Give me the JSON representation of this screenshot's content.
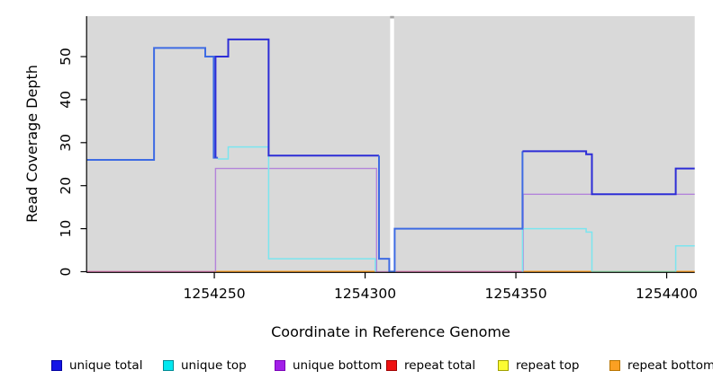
{
  "chart_data": {
    "type": "line",
    "title": "",
    "xlabel": "Coordinate in Reference Genome",
    "ylabel": "Read Coverage Depth",
    "xlim": [
      1254207.8,
      1254409.3
    ],
    "ylim": [
      0,
      59.4
    ],
    "x_ticks": [
      1254250,
      1254300,
      1254350,
      1254400
    ],
    "y_ticks": [
      0,
      10,
      20,
      30,
      40,
      50
    ],
    "grid": false,
    "plot_background": "#D9D9D9",
    "axis_color": "#000000",
    "gap_band": {
      "x0": 1254308.3,
      "x1": 1254309.6,
      "fill": "#FFFFFF",
      "cap_fill": "#A3A3A3"
    },
    "series": [
      {
        "name": "baseline-left-pink",
        "color": "#D878AE",
        "width": 1.8,
        "segments": [
          [
            [
              1254207.8,
              0
            ],
            [
              1254250,
              0
            ]
          ]
        ]
      },
      {
        "name": "baseline-left-orange",
        "color": "#FF9E20",
        "width": 2,
        "segments": [
          [
            [
              1254250,
              0
            ],
            [
              1254303.4,
              0
            ]
          ]
        ]
      },
      {
        "name": "baseline-gapside-violet",
        "color": "#CF8CC5",
        "width": 1.6,
        "segments": [
          [
            [
              1254303.4,
              0
            ],
            [
              1254308.3,
              0
            ]
          ]
        ]
      },
      {
        "name": "baseline-mid-pink",
        "color": "#D878AE",
        "width": 1.8,
        "segments": [
          [
            [
              1254310.2,
              0
            ],
            [
              1254352.2,
              0
            ]
          ]
        ]
      },
      {
        "name": "baseline-right-orange-1",
        "color": "#FF9E20",
        "width": 2,
        "segments": [
          [
            [
              1254352.2,
              0
            ],
            [
              1254375.2,
              0
            ]
          ]
        ]
      },
      {
        "name": "baseline-right-green",
        "color": "#8FD7A3",
        "width": 1.8,
        "segments": [
          [
            [
              1254375.2,
              0
            ],
            [
              1254403,
              0
            ]
          ]
        ]
      },
      {
        "name": "baseline-right-orange-2",
        "color": "#FF9E20",
        "width": 2,
        "segments": [
          [
            [
              1254403,
              0
            ],
            [
              1254409.3,
              0
            ]
          ]
        ]
      },
      {
        "name": "unique-bottom",
        "color": "#B384DA",
        "width": 1.4,
        "segments": [
          [
            [
              1254250.4,
              0
            ],
            [
              1254250.4,
              24
            ],
            [
              1254303.8,
              24
            ],
            [
              1254303.8,
              0
            ]
          ],
          [
            [
              1254352.4,
              0
            ],
            [
              1254352.4,
              18
            ],
            [
              1254409.3,
              18
            ]
          ]
        ]
      },
      {
        "name": "unique-top",
        "color": "#7BE5EF",
        "width": 1.5,
        "segments": [
          [
            [
              1254251.2,
              26.2
            ],
            [
              1254254.6,
              26.2
            ],
            [
              1254254.6,
              29
            ],
            [
              1254268,
              29
            ],
            [
              1254268,
              3
            ],
            [
              1254303.4,
              3
            ],
            [
              1254303.4,
              0
            ]
          ],
          [
            [
              1254352.2,
              0
            ],
            [
              1254352.2,
              10
            ],
            [
              1254373.3,
              10
            ],
            [
              1254373.3,
              9.2
            ],
            [
              1254375.2,
              9.2
            ],
            [
              1254375.2,
              0
            ]
          ],
          [
            [
              1254403,
              0
            ],
            [
              1254403,
              6
            ],
            [
              1254409.3,
              6
            ]
          ]
        ]
      },
      {
        "name": "unique-total-left",
        "color": "#3E6BE3",
        "width": 2,
        "segments": [
          [
            [
              1254207.8,
              26
            ],
            [
              1254230,
              26
            ],
            [
              1254230,
              52
            ],
            [
              1254247,
              52
            ],
            [
              1254247,
              50
            ],
            [
              1254249.8,
              50
            ],
            [
              1254249.8,
              26.5
            ],
            [
              1254251.2,
              26.5
            ]
          ]
        ]
      },
      {
        "name": "unique-total-left-dark",
        "color": "#2D2DD6",
        "width": 2,
        "segments": [
          [
            [
              1254250.4,
              26.5
            ],
            [
              1254250.4,
              50
            ],
            [
              1254254.6,
              50
            ],
            [
              1254254.6,
              54
            ],
            [
              1254268,
              54
            ],
            [
              1254268,
              27
            ],
            [
              1254304.6,
              27
            ]
          ]
        ]
      },
      {
        "name": "unique-total-mid",
        "color": "#3E6BE3",
        "width": 2,
        "segments": [
          [
            [
              1254304.6,
              27
            ],
            [
              1254304.6,
              3
            ],
            [
              1254308,
              3
            ],
            [
              1254308,
              0
            ],
            [
              1254309.8,
              0
            ],
            [
              1254309.8,
              10
            ],
            [
              1254352.2,
              10
            ],
            [
              1254352.2,
              28
            ]
          ]
        ]
      },
      {
        "name": "unique-total-right",
        "color": "#2D2DD6",
        "width": 2,
        "segments": [
          [
            [
              1254352.2,
              28
            ],
            [
              1254373.3,
              28
            ],
            [
              1254373.3,
              27.3
            ],
            [
              1254375.2,
              27.3
            ],
            [
              1254375.2,
              18
            ],
            [
              1254403,
              18
            ],
            [
              1254403,
              24
            ],
            [
              1254409.3,
              24
            ]
          ]
        ]
      }
    ]
  },
  "legend": {
    "position": "bottom",
    "items": [
      {
        "label": "unique total",
        "fill": "#1414E6",
        "border": "#0000A0"
      },
      {
        "label": "unique top",
        "fill": "#00E8F0",
        "border": "#008B94"
      },
      {
        "label": "unique bottom",
        "fill": "#A21FE8",
        "border": "#7A00B8"
      },
      {
        "label": "repeat total",
        "fill": "#EE1111",
        "border": "#A00000"
      },
      {
        "label": "repeat top",
        "fill": "#FBFB33",
        "border": "#A0A000"
      },
      {
        "label": "repeat bottom",
        "fill": "#FBA023",
        "border": "#B87400"
      }
    ]
  }
}
